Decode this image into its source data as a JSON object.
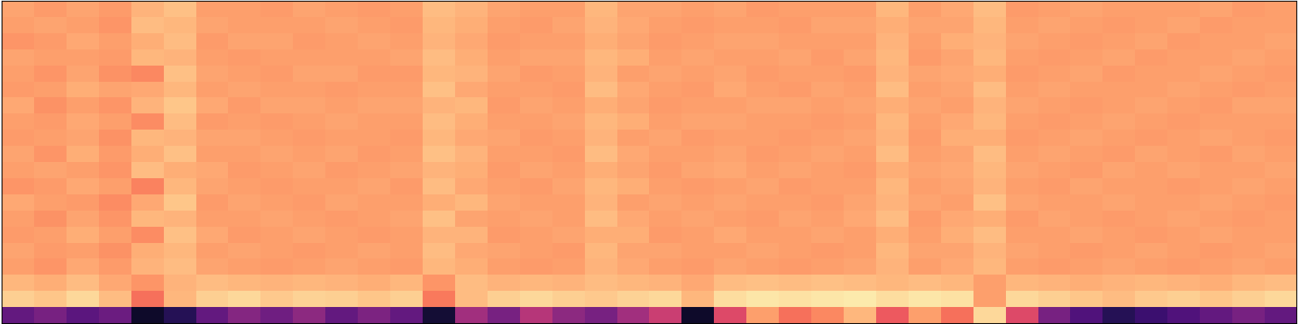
{
  "chart_data": {
    "type": "heatmap",
    "color": "magma",
    "tick_labels": false,
    "color_range": [
      0,
      1
    ],
    "cells": [
      [
        0.3,
        0.35,
        0.28,
        0.32,
        0.08,
        0.15,
        0.3,
        0.38,
        0.33,
        0.4,
        0.3,
        0.36,
        0.3,
        0.1,
        0.45,
        0.35,
        0.5,
        0.4,
        0.35,
        0.45,
        0.55,
        0.08,
        0.6,
        0.8,
        0.7,
        0.75,
        0.85,
        0.65,
        0.8,
        0.7,
        0.92,
        0.6,
        0.35,
        0.25,
        0.15,
        0.2,
        0.25,
        0.3,
        0.35,
        0.3
      ],
      [
        0.9,
        0.88,
        0.92,
        0.86,
        0.7,
        0.85,
        0.9,
        0.92,
        0.89,
        0.91,
        0.9,
        0.88,
        0.9,
        0.72,
        0.86,
        0.9,
        0.92,
        0.9,
        0.89,
        0.91,
        0.92,
        0.85,
        0.93,
        0.95,
        0.94,
        0.95,
        0.96,
        0.93,
        0.95,
        0.94,
        0.8,
        0.92,
        0.9,
        0.88,
        0.86,
        0.89,
        0.9,
        0.88,
        0.9,
        0.92
      ],
      [
        0.85,
        0.83,
        0.86,
        0.82,
        0.78,
        0.84,
        0.86,
        0.85,
        0.84,
        0.85,
        0.84,
        0.83,
        0.85,
        0.78,
        0.86,
        0.84,
        0.85,
        0.84,
        0.86,
        0.85,
        0.84,
        0.82,
        0.86,
        0.87,
        0.86,
        0.87,
        0.86,
        0.85,
        0.86,
        0.85,
        0.8,
        0.85,
        0.84,
        0.83,
        0.84,
        0.85,
        0.84,
        0.83,
        0.85,
        0.86
      ],
      [
        0.8,
        0.78,
        0.82,
        0.79,
        0.84,
        0.86,
        0.81,
        0.8,
        0.79,
        0.8,
        0.81,
        0.8,
        0.79,
        0.85,
        0.83,
        0.8,
        0.79,
        0.8,
        0.84,
        0.82,
        0.8,
        0.79,
        0.81,
        0.8,
        0.79,
        0.8,
        0.81,
        0.84,
        0.8,
        0.82,
        0.85,
        0.8,
        0.79,
        0.8,
        0.81,
        0.8,
        0.79,
        0.8,
        0.81,
        0.8
      ],
      [
        0.81,
        0.79,
        0.8,
        0.77,
        0.83,
        0.85,
        0.8,
        0.81,
        0.8,
        0.79,
        0.8,
        0.81,
        0.8,
        0.86,
        0.82,
        0.81,
        0.8,
        0.79,
        0.85,
        0.81,
        0.81,
        0.8,
        0.8,
        0.81,
        0.8,
        0.79,
        0.8,
        0.85,
        0.81,
        0.81,
        0.84,
        0.81,
        0.8,
        0.79,
        0.8,
        0.81,
        0.8,
        0.79,
        0.8,
        0.81
      ],
      [
        0.79,
        0.8,
        0.83,
        0.8,
        0.76,
        0.87,
        0.82,
        0.79,
        0.8,
        0.81,
        0.8,
        0.79,
        0.8,
        0.84,
        0.84,
        0.79,
        0.8,
        0.81,
        0.83,
        0.83,
        0.79,
        0.8,
        0.82,
        0.8,
        0.8,
        0.81,
        0.8,
        0.83,
        0.8,
        0.83,
        0.86,
        0.8,
        0.8,
        0.81,
        0.8,
        0.79,
        0.8,
        0.81,
        0.8,
        0.8
      ],
      [
        0.8,
        0.77,
        0.81,
        0.78,
        0.85,
        0.84,
        0.8,
        0.8,
        0.81,
        0.8,
        0.79,
        0.8,
        0.81,
        0.87,
        0.81,
        0.8,
        0.81,
        0.8,
        0.86,
        0.82,
        0.8,
        0.81,
        0.8,
        0.79,
        0.81,
        0.8,
        0.82,
        0.86,
        0.79,
        0.82,
        0.83,
        0.79,
        0.81,
        0.8,
        0.79,
        0.8,
        0.81,
        0.8,
        0.79,
        0.8
      ],
      [
        0.82,
        0.8,
        0.79,
        0.76,
        0.82,
        0.88,
        0.79,
        0.81,
        0.8,
        0.79,
        0.81,
        0.8,
        0.8,
        0.83,
        0.85,
        0.81,
        0.8,
        0.8,
        0.84,
        0.8,
        0.81,
        0.8,
        0.81,
        0.8,
        0.8,
        0.79,
        0.81,
        0.84,
        0.81,
        0.8,
        0.87,
        0.81,
        0.8,
        0.8,
        0.81,
        0.8,
        0.8,
        0.81,
        0.8,
        0.79
      ],
      [
        0.78,
        0.79,
        0.82,
        0.8,
        0.74,
        0.85,
        0.81,
        0.8,
        0.79,
        0.8,
        0.8,
        0.81,
        0.79,
        0.86,
        0.82,
        0.8,
        0.79,
        0.81,
        0.85,
        0.83,
        0.8,
        0.79,
        0.8,
        0.81,
        0.79,
        0.8,
        0.8,
        0.85,
        0.8,
        0.81,
        0.84,
        0.8,
        0.79,
        0.81,
        0.8,
        0.8,
        0.79,
        0.8,
        0.81,
        0.8
      ],
      [
        0.8,
        0.81,
        0.8,
        0.78,
        0.86,
        0.83,
        0.82,
        0.79,
        0.8,
        0.81,
        0.79,
        0.8,
        0.81,
        0.84,
        0.83,
        0.79,
        0.81,
        0.8,
        0.83,
        0.81,
        0.79,
        0.81,
        0.82,
        0.8,
        0.81,
        0.8,
        0.79,
        0.83,
        0.81,
        0.82,
        0.85,
        0.81,
        0.8,
        0.79,
        0.81,
        0.8,
        0.81,
        0.8,
        0.8,
        0.81
      ],
      [
        0.81,
        0.78,
        0.83,
        0.79,
        0.83,
        0.87,
        0.8,
        0.8,
        0.81,
        0.8,
        0.81,
        0.79,
        0.8,
        0.87,
        0.84,
        0.8,
        0.8,
        0.79,
        0.86,
        0.82,
        0.8,
        0.8,
        0.81,
        0.79,
        0.8,
        0.81,
        0.8,
        0.86,
        0.8,
        0.81,
        0.86,
        0.8,
        0.81,
        0.8,
        0.79,
        0.81,
        0.8,
        0.79,
        0.81,
        0.8
      ],
      [
        0.79,
        0.8,
        0.81,
        0.77,
        0.85,
        0.84,
        0.81,
        0.81,
        0.8,
        0.79,
        0.8,
        0.8,
        0.79,
        0.85,
        0.82,
        0.81,
        0.79,
        0.8,
        0.84,
        0.8,
        0.81,
        0.79,
        0.8,
        0.8,
        0.79,
        0.8,
        0.81,
        0.84,
        0.79,
        0.83,
        0.83,
        0.79,
        0.8,
        0.81,
        0.8,
        0.79,
        0.8,
        0.81,
        0.8,
        0.79
      ],
      [
        0.8,
        0.79,
        0.82,
        0.8,
        0.76,
        0.86,
        0.79,
        0.8,
        0.79,
        0.8,
        0.81,
        0.8,
        0.8,
        0.86,
        0.83,
        0.8,
        0.8,
        0.81,
        0.85,
        0.83,
        0.8,
        0.81,
        0.81,
        0.8,
        0.8,
        0.79,
        0.8,
        0.85,
        0.8,
        0.82,
        0.85,
        0.8,
        0.79,
        0.8,
        0.81,
        0.8,
        0.79,
        0.8,
        0.8,
        0.8
      ],
      [
        0.82,
        0.77,
        0.8,
        0.78,
        0.84,
        0.88,
        0.82,
        0.79,
        0.81,
        0.81,
        0.8,
        0.81,
        0.81,
        0.84,
        0.85,
        0.79,
        0.81,
        0.8,
        0.83,
        0.81,
        0.79,
        0.8,
        0.8,
        0.81,
        0.81,
        0.8,
        0.81,
        0.83,
        0.81,
        0.8,
        0.84,
        0.81,
        0.8,
        0.79,
        0.8,
        0.81,
        0.8,
        0.79,
        0.81,
        0.81
      ],
      [
        0.79,
        0.8,
        0.83,
        0.81,
        0.82,
        0.85,
        0.8,
        0.81,
        0.8,
        0.8,
        0.79,
        0.8,
        0.8,
        0.87,
        0.82,
        0.8,
        0.8,
        0.79,
        0.86,
        0.82,
        0.8,
        0.79,
        0.82,
        0.8,
        0.79,
        0.81,
        0.8,
        0.86,
        0.8,
        0.81,
        0.86,
        0.8,
        0.81,
        0.8,
        0.8,
        0.8,
        0.81,
        0.8,
        0.79,
        0.8
      ],
      [
        0.8,
        0.78,
        0.81,
        0.77,
        0.75,
        0.87,
        0.81,
        0.8,
        0.79,
        0.81,
        0.81,
        0.79,
        0.79,
        0.85,
        0.84,
        0.81,
        0.79,
        0.8,
        0.84,
        0.8,
        0.81,
        0.8,
        0.81,
        0.79,
        0.8,
        0.8,
        0.79,
        0.84,
        0.81,
        0.82,
        0.83,
        0.79,
        0.8,
        0.81,
        0.79,
        0.8,
        0.8,
        0.81,
        0.8,
        0.79
      ],
      [
        0.81,
        0.8,
        0.8,
        0.79,
        0.85,
        0.84,
        0.8,
        0.79,
        0.8,
        0.8,
        0.8,
        0.8,
        0.81,
        0.86,
        0.83,
        0.8,
        0.81,
        0.81,
        0.85,
        0.83,
        0.8,
        0.81,
        0.8,
        0.8,
        0.81,
        0.79,
        0.81,
        0.85,
        0.79,
        0.81,
        0.85,
        0.8,
        0.79,
        0.8,
        0.81,
        0.79,
        0.8,
        0.8,
        0.81,
        0.8
      ],
      [
        0.78,
        0.79,
        0.82,
        0.8,
        0.83,
        0.86,
        0.79,
        0.81,
        0.81,
        0.79,
        0.8,
        0.81,
        0.8,
        0.84,
        0.82,
        0.79,
        0.8,
        0.8,
        0.83,
        0.81,
        0.79,
        0.8,
        0.81,
        0.81,
        0.8,
        0.8,
        0.8,
        0.84,
        0.8,
        0.83,
        0.84,
        0.81,
        0.8,
        0.79,
        0.8,
        0.81,
        0.79,
        0.8,
        0.8,
        0.81
      ],
      [
        0.8,
        0.81,
        0.8,
        0.78,
        0.86,
        0.85,
        0.81,
        0.8,
        0.8,
        0.8,
        0.81,
        0.8,
        0.79,
        0.85,
        0.83,
        0.8,
        0.79,
        0.81,
        0.84,
        0.82,
        0.8,
        0.79,
        0.8,
        0.8,
        0.79,
        0.81,
        0.81,
        0.83,
        0.81,
        0.81,
        0.85,
        0.8,
        0.81,
        0.8,
        0.79,
        0.8,
        0.81,
        0.79,
        0.8,
        0.8
      ],
      [
        0.81,
        0.79,
        0.81,
        0.79,
        0.84,
        0.87,
        0.8,
        0.8,
        0.79,
        0.81,
        0.8,
        0.79,
        0.8,
        0.86,
        0.84,
        0.81,
        0.8,
        0.8,
        0.85,
        0.81,
        0.81,
        0.8,
        0.81,
        0.79,
        0.8,
        0.8,
        0.8,
        0.85,
        0.8,
        0.82,
        0.86,
        0.79,
        0.8,
        0.81,
        0.8,
        0.8,
        0.8,
        0.81,
        0.79,
        0.8
      ]
    ]
  }
}
